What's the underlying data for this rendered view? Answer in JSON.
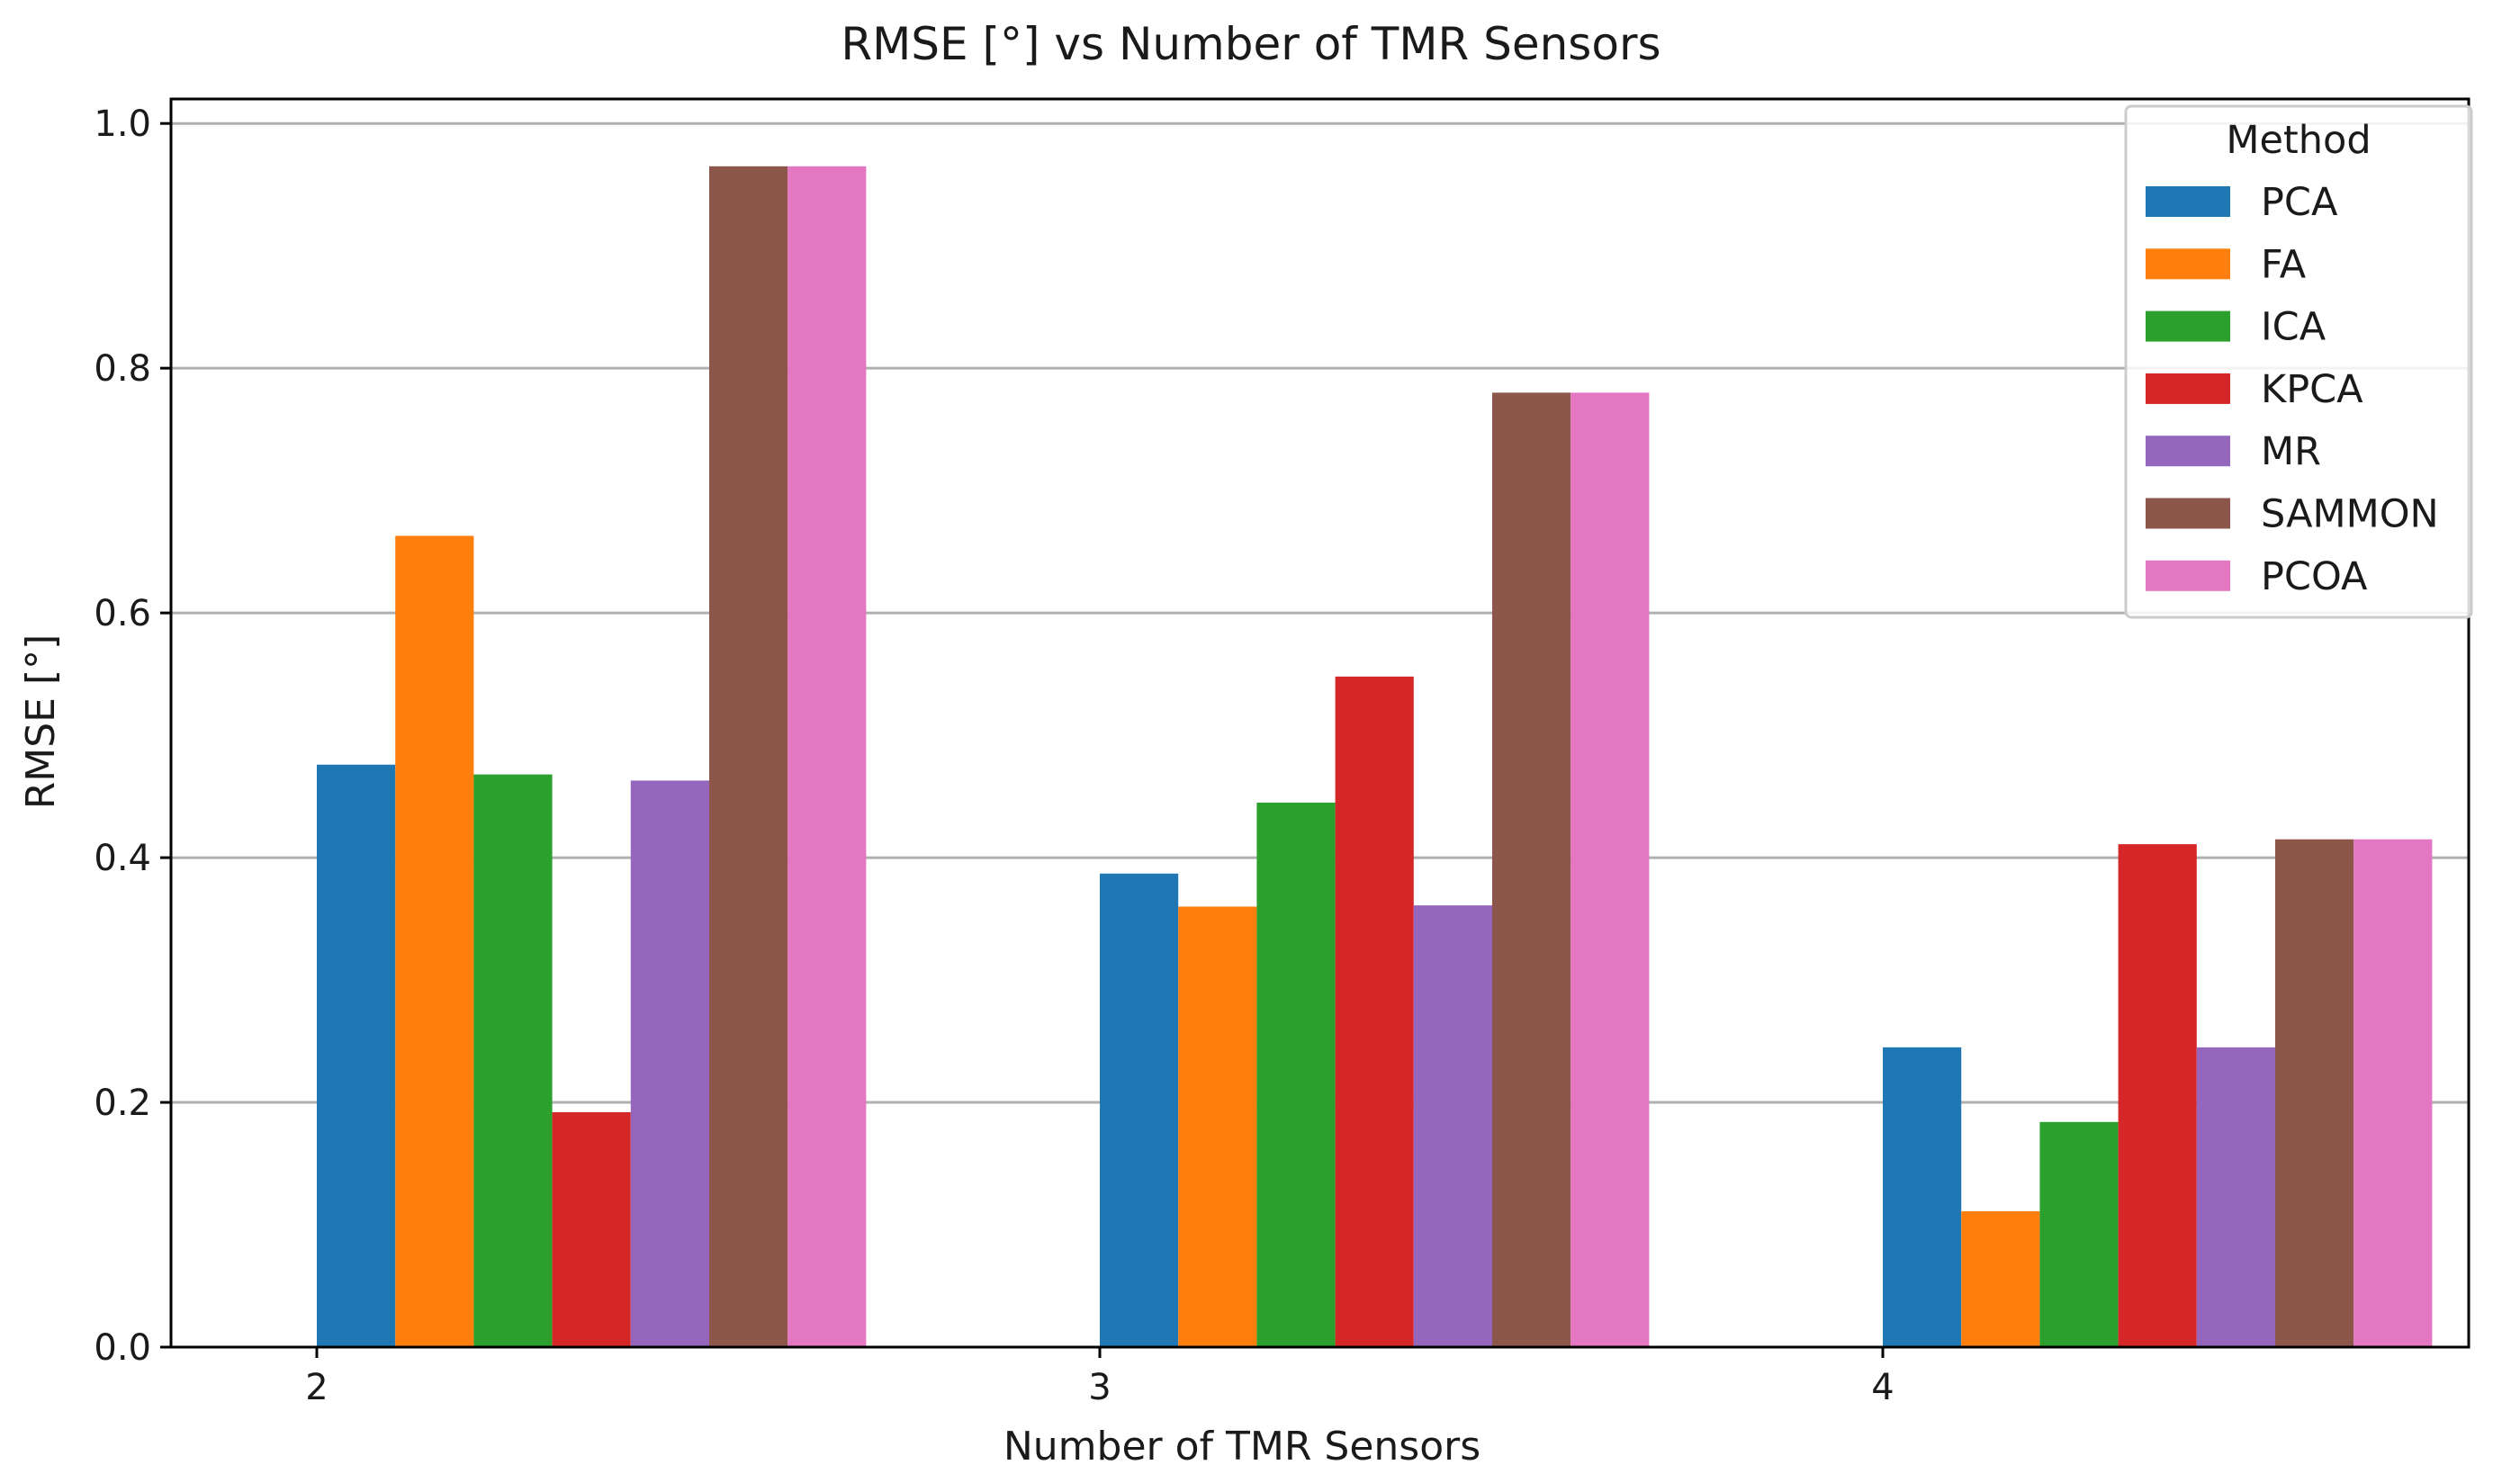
{
  "chart_data": {
    "type": "bar",
    "title": "RMSE [°] vs Number of TMR Sensors",
    "xlabel": "Number of TMR Sensors",
    "ylabel": "RMSE [°]",
    "categories": [
      "2",
      "3",
      "4"
    ],
    "ylim": [
      0,
      1.02
    ],
    "yticks": [
      "0.0",
      "0.2",
      "0.4",
      "0.6",
      "0.8",
      "1.0"
    ],
    "grid": "horizontal",
    "legend": {
      "title": "Method",
      "placement": "top-right"
    },
    "series": [
      {
        "name": "PCA",
        "color": "#1f77b4",
        "values": [
          0.476,
          0.387,
          0.245
        ]
      },
      {
        "name": "FA",
        "color": "#ff7f0e",
        "values": [
          0.663,
          0.36,
          0.111
        ]
      },
      {
        "name": "ICA",
        "color": "#2ca02c",
        "values": [
          0.468,
          0.445,
          0.184
        ]
      },
      {
        "name": "KPCA",
        "color": "#d62728",
        "values": [
          0.192,
          0.548,
          0.411
        ]
      },
      {
        "name": "MR",
        "color": "#9467bd",
        "values": [
          0.463,
          0.361,
          0.245
        ]
      },
      {
        "name": "SAMMON",
        "color": "#8c564b",
        "values": [
          0.965,
          0.78,
          0.415
        ]
      },
      {
        "name": "PCOA",
        "color": "#e377c2",
        "values": [
          0.965,
          0.78,
          0.415
        ]
      }
    ]
  }
}
